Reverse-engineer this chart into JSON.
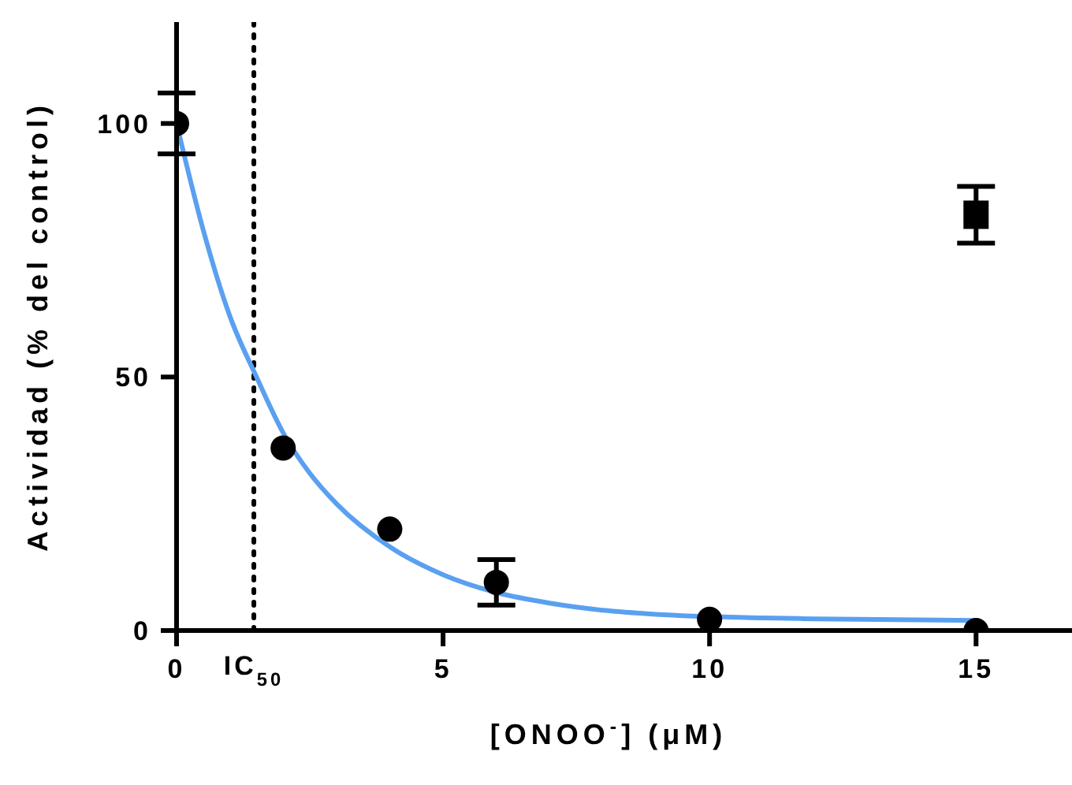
{
  "chart_data": {
    "type": "scatter",
    "xlabel": "[ONOO$^{-}$] (μM)",
    "ylabel": "Actividad (% del control)",
    "xlim": [
      0,
      16.8
    ],
    "xticks": [
      0,
      5,
      10,
      15
    ],
    "ylim": [
      0,
      120
    ],
    "yticks": [
      0,
      50,
      100
    ],
    "ref_lines": [
      {
        "axis": "x",
        "value": 1.45,
        "label": "IC$_{50}$",
        "color": "#000000",
        "line_style": "dotted"
      }
    ],
    "series": [
      {
        "type": "line",
        "color": "#5aa0f0",
        "marker": "none",
        "line_style": "solid",
        "x": [
          0,
          0.5,
          1,
          1.5,
          2,
          2.5,
          3,
          4,
          5,
          6,
          7,
          8,
          9,
          11,
          12,
          15
        ],
        "values": [
          100,
          79,
          62,
          50,
          39,
          31,
          25,
          16.5,
          11,
          7.5,
          5.4,
          4,
          3.2,
          2.5,
          2.3,
          2
        ]
      },
      {
        "color": "#000000",
        "marker": "circle",
        "x": [
          0,
          2,
          4,
          6,
          10,
          15
        ],
        "values": [
          100,
          36,
          20,
          9.5,
          2.2,
          0
        ],
        "errors": [
          6,
          null,
          null,
          4.5,
          null,
          null
        ]
      },
      {
        "color": "#000000",
        "marker": "square",
        "x": [
          15
        ],
        "values": [
          82
        ],
        "errors": [
          5.6
        ]
      }
    ]
  }
}
